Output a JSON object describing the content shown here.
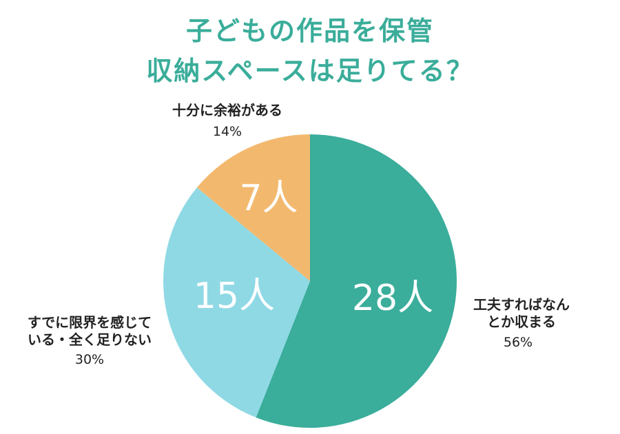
{
  "title": {
    "line1": "子どもの作品を保管",
    "line2": "収納スペースは足りてる？",
    "color": "#3aad9a"
  },
  "chart_data": {
    "type": "pie",
    "title": "子どもの作品を保管収納スペースは足りてる？",
    "start": "12 o'clock",
    "direction": "clockwise",
    "slices": [
      {
        "category_line1": "工夫すればなん",
        "category_line2": "とか収まる",
        "value": 28,
        "value_label": "28人",
        "percent_label": "56%",
        "color": "#3aad9b"
      },
      {
        "category_line1": "すでに限界を感じて",
        "category_line2": "いる・全く足りない",
        "value": 15,
        "value_label": "15人",
        "percent_label": "30%",
        "color": "#8fd9e5"
      },
      {
        "category_line1": "十分に余裕がある",
        "category_line2": "",
        "value": 7,
        "value_label": "7人",
        "percent_label": "14%",
        "color": "#f2b96e"
      }
    ]
  }
}
